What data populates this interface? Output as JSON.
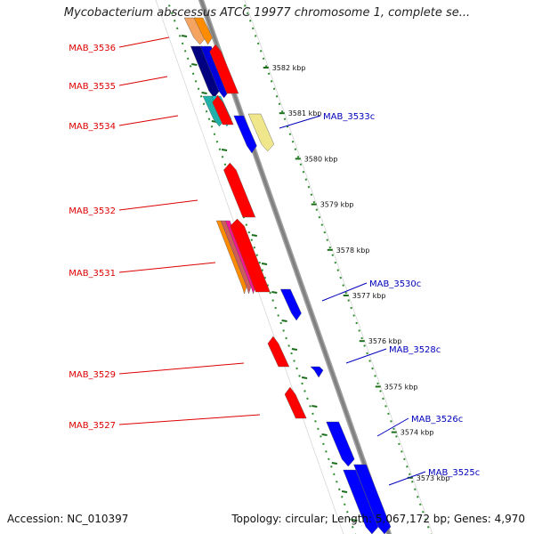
{
  "title": "Mycobacterium abscessus ATCC 19977 chromosome 1, complete se...",
  "footer": {
    "accession": "Accession: NC_010397",
    "summary": "Topology: circular; Length: 5,067,172 bp; Genes: 4,970"
  },
  "colors": {
    "forward_label": "#dd0000",
    "reverse_label": "#0000bb",
    "forward_feature": "#ff0000",
    "reverse_feature": "#0000ff",
    "backbone": "#808080",
    "dotted_track": "#2e8b2e"
  },
  "ruler": [
    "3582 kbp",
    "3581 kbp",
    "3580 kbp",
    "3579 kbp",
    "3578 kbp",
    "3577 kbp",
    "3576 kbp",
    "3575 kbp",
    "3574 kbp",
    "3573 kbp"
  ],
  "forward_genes": [
    "MAB_3536",
    "MAB_3535",
    "MAB_3534",
    "MAB_3532",
    "MAB_3531",
    "MAB_3529",
    "MAB_3527"
  ],
  "reverse_genes": [
    "MAB_3533c",
    "MAB_3530c",
    "MAB_3528c",
    "MAB_3526c",
    "MAB_3525c"
  ]
}
